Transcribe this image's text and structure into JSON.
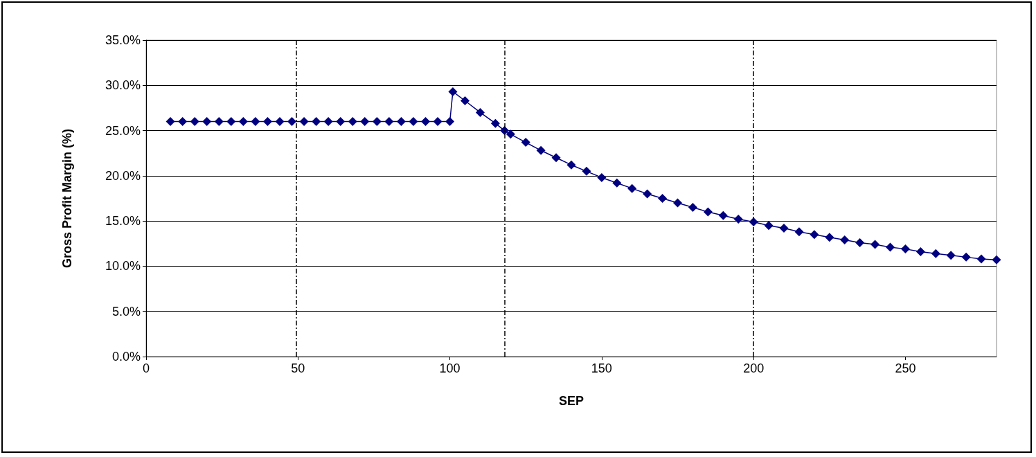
{
  "chart_data": {
    "type": "line",
    "xlabel": "SEP",
    "ylabel": "Gross Profit Margin (%)",
    "series": [
      {
        "color": "#000080",
        "x": [
          8,
          12,
          16,
          20,
          24,
          28,
          32,
          36,
          40,
          44,
          48,
          52,
          56,
          60,
          64,
          68,
          72,
          76,
          80,
          84,
          88,
          92,
          96,
          100,
          101,
          105,
          110,
          115,
          118,
          120,
          125,
          130,
          135,
          140,
          145,
          150,
          155,
          160,
          165,
          170,
          175,
          180,
          185,
          190,
          195,
          200,
          205,
          210,
          215,
          220,
          225,
          230,
          235,
          240,
          245,
          250,
          255,
          260,
          265,
          270,
          275,
          280
        ],
        "values": [
          26,
          26,
          26,
          26,
          26,
          26,
          26,
          26,
          26,
          26,
          26,
          26,
          26,
          26,
          26,
          26,
          26,
          26,
          26,
          26,
          26,
          26,
          26,
          26,
          29.3,
          28.3,
          27.0,
          25.8,
          25.0,
          24.6,
          23.7,
          22.8,
          22.0,
          21.2,
          20.5,
          19.8,
          19.2,
          18.6,
          18.0,
          17.5,
          17.0,
          16.5,
          16.0,
          15.6,
          15.2,
          14.9,
          14.5,
          14.2,
          13.8,
          13.5,
          13.2,
          12.9,
          12.6,
          12.4,
          12.1,
          11.9,
          11.6,
          11.4,
          11.2,
          11.0,
          10.8,
          10.7
        ]
      }
    ],
    "xlim": [
      0,
      280
    ],
    "xticks": [
      0,
      50,
      100,
      150,
      200,
      250
    ],
    "ylim": [
      0,
      35
    ],
    "yticks": [
      {
        "value": 0,
        "label": "0.0%"
      },
      {
        "value": 5,
        "label": "5.0%"
      },
      {
        "value": 10,
        "label": "10.0%"
      },
      {
        "value": 15,
        "label": "15.0%"
      },
      {
        "value": 20,
        "label": "20.0%"
      },
      {
        "value": 25,
        "label": "25.0%"
      },
      {
        "value": 30,
        "label": "30.0%"
      },
      {
        "value": 35,
        "label": "35.0%"
      }
    ],
    "ref_lines": [
      {
        "axis": "x",
        "value": 49.5,
        "color": "#000000",
        "line_style": "dashed"
      },
      {
        "axis": "x",
        "value": 118,
        "color": "#000000",
        "line_style": "dashed"
      },
      {
        "axis": "x",
        "value": 200,
        "color": "#000000",
        "line_style": "dashed"
      }
    ],
    "grid": "y",
    "marker": "diamond",
    "line_style": "solid"
  }
}
